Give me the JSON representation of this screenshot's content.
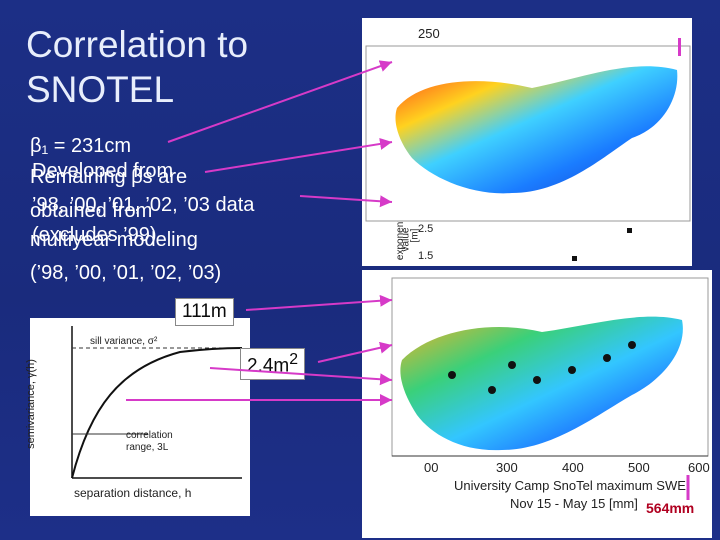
{
  "slide": {
    "title_line1": "Correlation to",
    "title_line2": "SNOTEL",
    "beta_line": "β₁ = 231cm",
    "overlap1_line1": "Remaining βs are",
    "overlap1_line2": "obtained from",
    "overlap1_line3": "multiyear modeling",
    "overlap1_line4": "(’98, ’00, ’01, ’02, ’03)",
    "overlap2_line1": "Developed from",
    "overlap2_line2": "’98, ’00, ’01, ’02, ’03 data",
    "overlap2_line3": "(excludes ’99)",
    "label_111m": "111m",
    "label_2_4m": "2.4m",
    "label_2_4m_exp": "2",
    "label_564mm": "564mm"
  },
  "top_map": {
    "axis_top": "250",
    "axis_y_labels": [
      "2.5",
      "1.5"
    ],
    "axis_y_title": "exponent",
    "axis_y_title2": "value",
    "axis_y_unit": "[m]"
  },
  "bottom_map": {
    "x_ticks": [
      "300",
      "400",
      "500",
      "600"
    ],
    "x_first_partial": "00",
    "title_line1": "University Camp SnoTel maximum SWE",
    "title_line2": "Nov 15 - May 15 [mm]"
  },
  "variogram": {
    "sill_label": "sill variance, σ²",
    "range_label_1": "correlation",
    "range_label_2": "range, 3L",
    "y_axis": "semivariance, γ(h)",
    "x_axis": "separation distance, h"
  },
  "colors": {
    "background": "#1c2f86",
    "arrow": "#d63ac8",
    "highlight": "#b00020"
  }
}
